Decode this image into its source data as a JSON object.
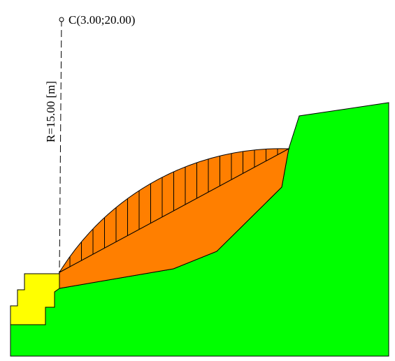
{
  "center_label": "C(3.00;20.00)",
  "radius_label": "R=15.00 [m]"
}
